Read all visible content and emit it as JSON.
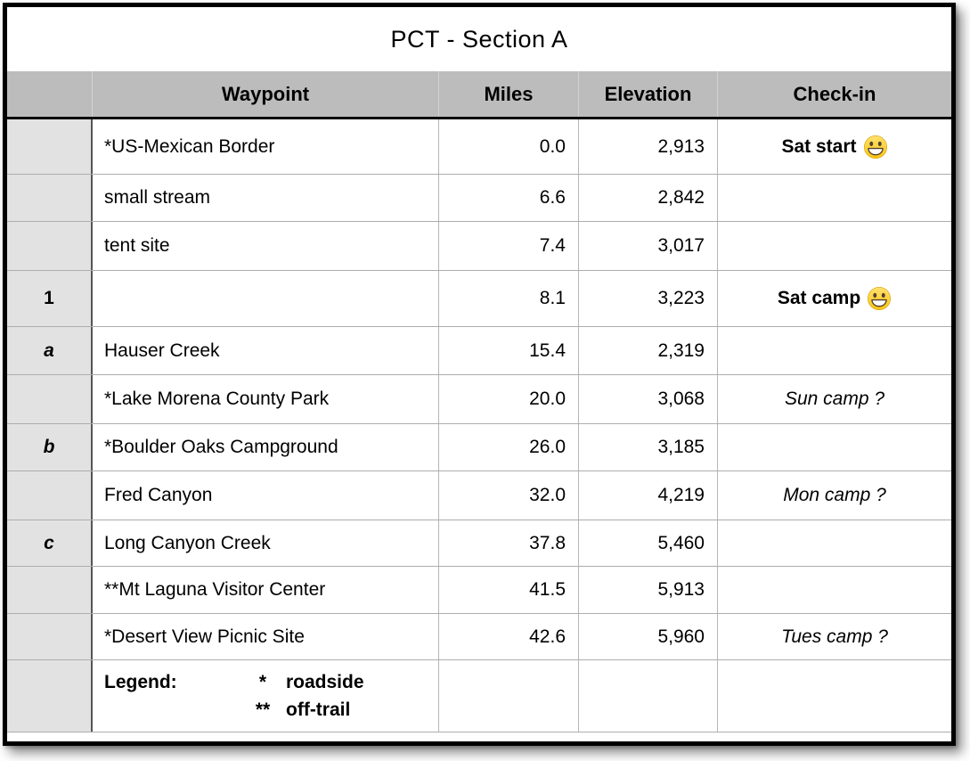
{
  "title": "PCT - Section A",
  "columns": {
    "label": "",
    "waypoint": "Waypoint",
    "miles": "Miles",
    "elevation": "Elevation",
    "checkin": "Check-in"
  },
  "rows": [
    {
      "label": "",
      "label_style": "",
      "waypoint": "*US-Mexican Border",
      "miles": "0.0",
      "elevation": "2,913",
      "checkin": "Sat start",
      "checkin_style": "bold",
      "checkin_emoji": "grinning-face"
    },
    {
      "label": "",
      "label_style": "",
      "waypoint": "small stream",
      "miles": "6.6",
      "elevation": "2,842",
      "checkin": "",
      "checkin_style": "",
      "checkin_emoji": ""
    },
    {
      "label": "",
      "label_style": "",
      "waypoint": "tent site",
      "miles": "7.4",
      "elevation": "3,017",
      "checkin": "",
      "checkin_style": "",
      "checkin_emoji": ""
    },
    {
      "label": "1",
      "label_style": "bold",
      "waypoint": "",
      "miles": "8.1",
      "elevation": "3,223",
      "checkin": "Sat camp",
      "checkin_style": "bold",
      "checkin_emoji": "grinning-face"
    },
    {
      "label": "a",
      "label_style": "bold-italic",
      "waypoint": "Hauser Creek",
      "miles": "15.4",
      "elevation": "2,319",
      "checkin": "",
      "checkin_style": "",
      "checkin_emoji": ""
    },
    {
      "label": "",
      "label_style": "",
      "waypoint": "*Lake Morena County Park",
      "miles": "20.0",
      "elevation": "3,068",
      "checkin": "Sun camp ?",
      "checkin_style": "italic",
      "checkin_emoji": ""
    },
    {
      "label": "b",
      "label_style": "bold-italic",
      "waypoint": "*Boulder Oaks Campground",
      "miles": "26.0",
      "elevation": "3,185",
      "checkin": "",
      "checkin_style": "",
      "checkin_emoji": ""
    },
    {
      "label": "",
      "label_style": "",
      "waypoint": "Fred Canyon",
      "miles": "32.0",
      "elevation": "4,219",
      "checkin": "Mon camp ?",
      "checkin_style": "italic",
      "checkin_emoji": ""
    },
    {
      "label": "c",
      "label_style": "bold-italic",
      "waypoint": "Long Canyon Creek",
      "miles": "37.8",
      "elevation": "5,460",
      "checkin": "",
      "checkin_style": "",
      "checkin_emoji": ""
    },
    {
      "label": "",
      "label_style": "",
      "waypoint": "**Mt Laguna Visitor Center",
      "miles": "41.5",
      "elevation": "5,913",
      "checkin": "",
      "checkin_style": "",
      "checkin_emoji": ""
    },
    {
      "label": "",
      "label_style": "",
      "waypoint": "*Desert View Picnic Site",
      "miles": "42.6",
      "elevation": "5,960",
      "checkin": "Tues camp ?",
      "checkin_style": "italic",
      "checkin_emoji": ""
    }
  ],
  "legend": {
    "label": "Legend:",
    "entries": [
      {
        "symbol": "*",
        "meaning": "roadside"
      },
      {
        "symbol": "**",
        "meaning": "off-trail"
      }
    ]
  },
  "chart_data": {
    "type": "table",
    "title": "PCT - Section A",
    "columns": [
      "Waypoint",
      "Miles",
      "Elevation",
      "Check-in"
    ],
    "rows": [
      [
        "*US-Mexican Border",
        0.0,
        2913,
        "Sat start"
      ],
      [
        "small stream",
        6.6,
        2842,
        ""
      ],
      [
        "tent site",
        7.4,
        3017,
        ""
      ],
      [
        "",
        8.1,
        3223,
        "Sat camp"
      ],
      [
        "Hauser Creek",
        15.4,
        2319,
        ""
      ],
      [
        "*Lake Morena County Park",
        20.0,
        3068,
        "Sun camp ?"
      ],
      [
        "*Boulder Oaks Campground",
        26.0,
        3185,
        ""
      ],
      [
        "Fred Canyon",
        32.0,
        4219,
        "Mon camp ?"
      ],
      [
        "Long Canyon Creek",
        37.8,
        5460,
        ""
      ],
      [
        "**Mt Laguna Visitor Center",
        41.5,
        5913,
        ""
      ],
      [
        "*Desert View Picnic Site",
        42.6,
        5960,
        "Tues camp ?"
      ]
    ]
  },
  "colors": {
    "header_bg": "#bcbcbc",
    "label_column_bg": "#e2e2e2",
    "grid_line": "#adadad",
    "label_divider": "#555555",
    "header_divider": "#0b0b0b",
    "frame": "#000000",
    "emoji_yellow_top": "#ffe16e",
    "emoji_yellow_bottom": "#f9c513",
    "emoji_brown": "#54402d"
  }
}
